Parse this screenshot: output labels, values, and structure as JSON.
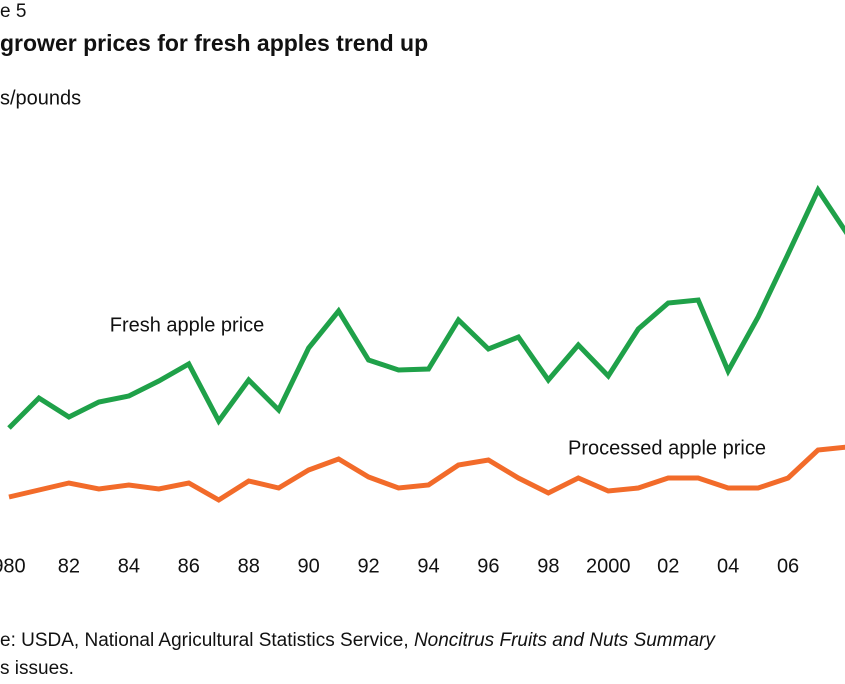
{
  "chart_data": {
    "type": "line",
    "figure_label": "e 5",
    "title": "grower prices for fresh apples trend up",
    "y_label": "s/pounds",
    "x": [
      1980,
      1981,
      1982,
      1983,
      1984,
      1985,
      1986,
      1987,
      1988,
      1989,
      1990,
      1991,
      1992,
      1993,
      1994,
      1995,
      1996,
      1997,
      1998,
      1999,
      2000,
      2001,
      2002,
      2003,
      2004,
      2005,
      2006,
      2007,
      2008
    ],
    "xlim": [
      1979.7,
      2007.9
    ],
    "xticks": [
      {
        "value": 1980,
        "label": "980"
      },
      {
        "value": 1982,
        "label": "82"
      },
      {
        "value": 1984,
        "label": "84"
      },
      {
        "value": 1986,
        "label": "86"
      },
      {
        "value": 1988,
        "label": "88"
      },
      {
        "value": 1990,
        "label": "90"
      },
      {
        "value": 1992,
        "label": "92"
      },
      {
        "value": 1994,
        "label": "94"
      },
      {
        "value": 1996,
        "label": "96"
      },
      {
        "value": 1998,
        "label": "98"
      },
      2000,
      {
        "value": 2002,
        "label": "02"
      },
      {
        "value": 2004,
        "label": "04"
      },
      {
        "value": 2006,
        "label": "06"
      }
    ],
    "ylim": [
      0,
      50
    ],
    "series": [
      {
        "name": "Fresh apple price",
        "color": "#1fa149",
        "values": [
          11.2,
          14.2,
          12.3,
          13.8,
          14.4,
          15.9,
          17.6,
          11.9,
          16.0,
          13.0,
          19.2,
          22.9,
          18.0,
          17.0,
          17.1,
          22.0,
          19.1,
          20.3,
          16.0,
          19.5,
          16.4,
          21.1,
          23.7,
          24.0,
          16.9,
          22.3,
          28.6,
          35.0,
          30.5
        ]
      },
      {
        "name": "Processed apple price",
        "color": "#f26b2a",
        "values": [
          4.3,
          5.0,
          5.7,
          5.1,
          5.5,
          5.1,
          5.7,
          4.0,
          5.9,
          5.2,
          7.0,
          8.1,
          6.3,
          5.2,
          5.5,
          7.5,
          8.0,
          6.2,
          4.7,
          6.2,
          4.9,
          5.2,
          6.2,
          6.2,
          5.2,
          5.2,
          6.2,
          9.0,
          9.3
        ]
      }
    ],
    "source": {
      "prefix": "e: USDA, National Agricultural Statistics Service, ",
      "publication": "Noncitrus Fruits and Nuts Summary",
      "line2": "s issues."
    }
  }
}
